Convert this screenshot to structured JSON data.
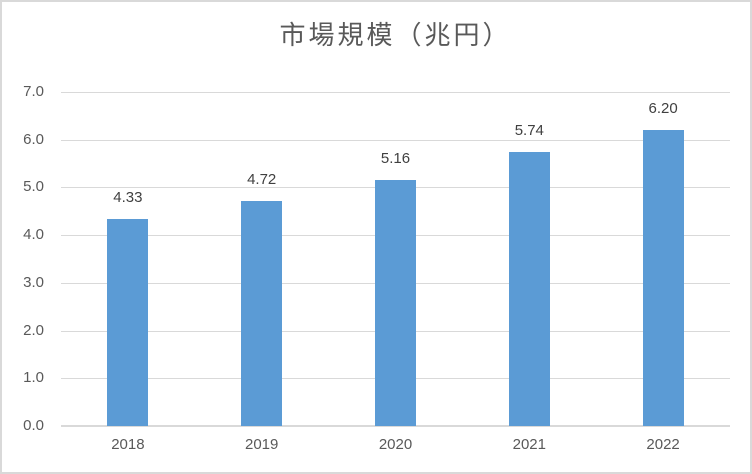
{
  "chart_data": {
    "type": "bar",
    "title": "市場規模（兆円）",
    "categories": [
      "2018",
      "2019",
      "2020",
      "2021",
      "2022"
    ],
    "values": [
      4.33,
      4.72,
      5.16,
      5.74,
      6.2
    ],
    "data_labels": [
      "4.33",
      "4.72",
      "5.16",
      "5.74",
      "6.20"
    ],
    "xlabel": "",
    "ylabel": "",
    "ylim": [
      0,
      7
    ],
    "ytick_step": 1,
    "ytick_labels": [
      "0.0",
      "1.0",
      "2.0",
      "3.0",
      "4.0",
      "5.0",
      "6.0",
      "7.0"
    ],
    "grid": true,
    "legend_position": "none",
    "colors": {
      "bar": "#5B9BD5",
      "gridline": "#D9D9D9",
      "axis_line": "#D9D9D9",
      "border": "#D9D9D9",
      "title_text": "#595959",
      "tick_label_text": "#595959",
      "data_label_text": "#404040",
      "background": "#FFFFFF"
    }
  }
}
